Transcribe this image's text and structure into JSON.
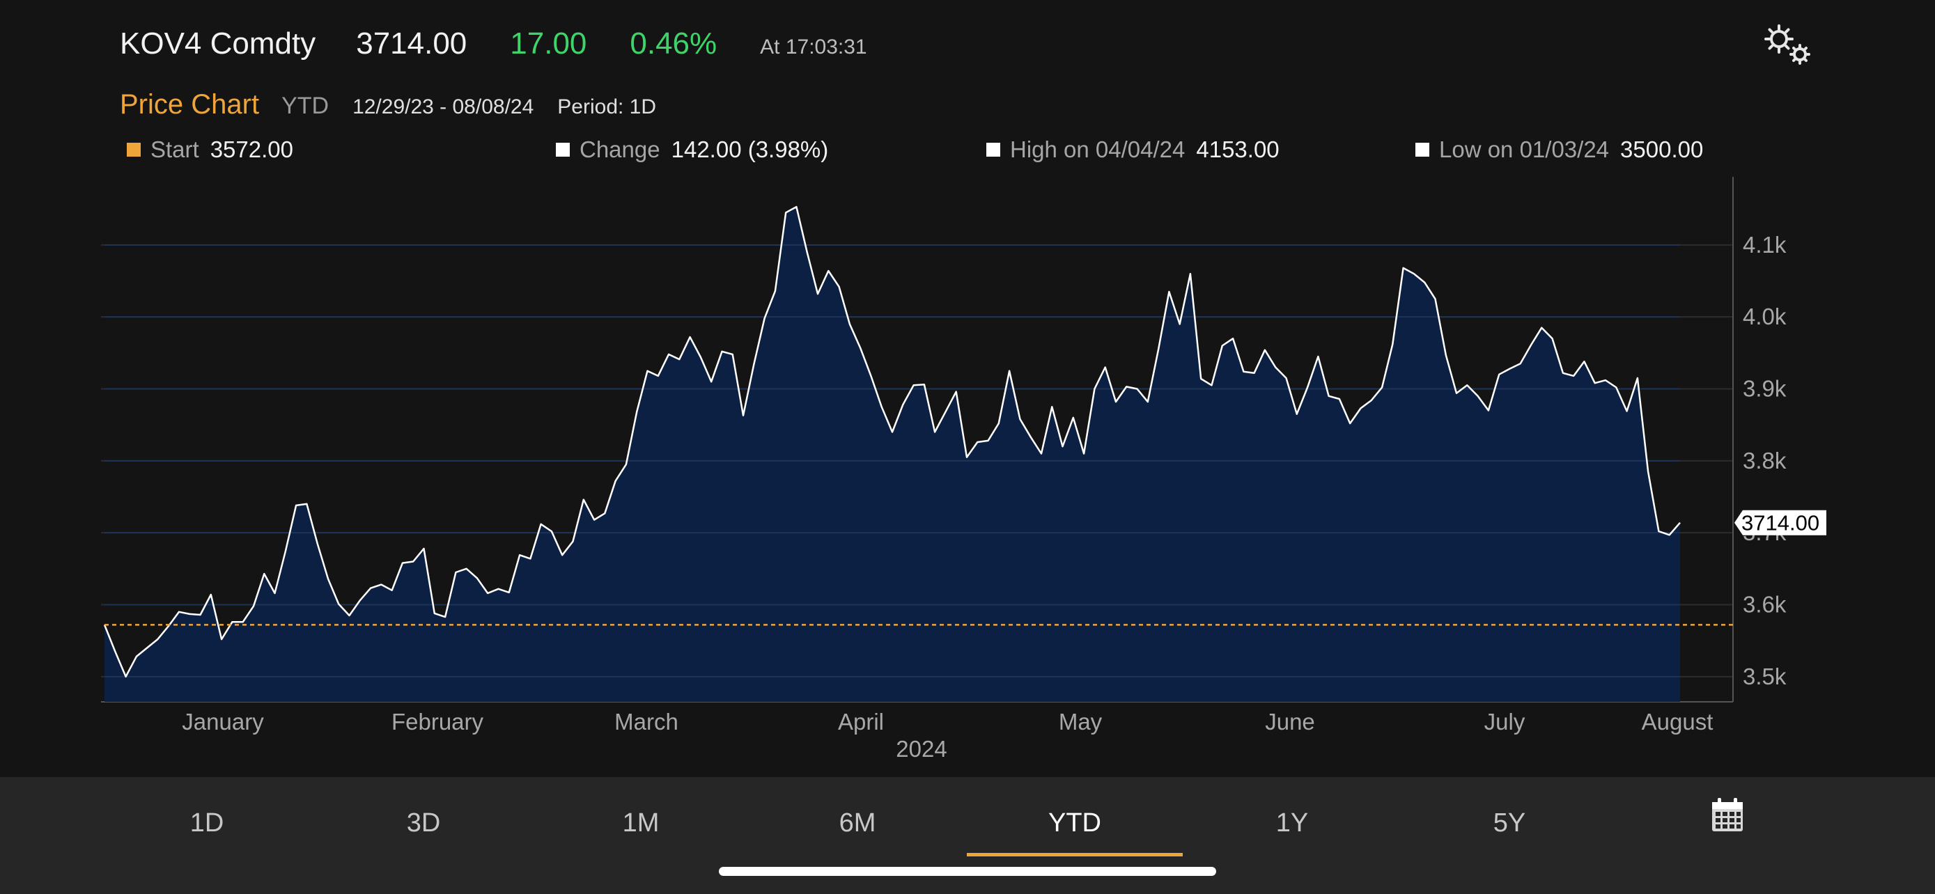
{
  "header": {
    "ticker": "KOV4 Comdty",
    "last_price": "3714.00",
    "net_change": "17.00",
    "pct_change": "0.46%",
    "as_of": "At 17:03:31",
    "settings_icon": "gears-icon"
  },
  "subheader": {
    "title": "Price Chart",
    "range": "YTD",
    "dates": "12/29/23 - 08/08/24",
    "period": "Period: 1D"
  },
  "stats": [
    {
      "label": "Start",
      "value": "3572.00",
      "color": "#f0a53a"
    },
    {
      "label": "Change",
      "value": "142.00 (3.98%)",
      "color": "#ffffff"
    },
    {
      "label": "High on 04/04/24",
      "value": "4153.00",
      "color": "#ffffff"
    },
    {
      "label": "Low on 01/03/24",
      "value": "3500.00",
      "color": "#ffffff"
    }
  ],
  "chart_data": {
    "type": "area",
    "title": "",
    "xlabel": "2024",
    "ylabel": "",
    "ylim": [
      3465,
      4185
    ],
    "y_ticks": [
      3500,
      3600,
      3700,
      3800,
      3900,
      4000,
      4100
    ],
    "y_tick_labels": [
      "3.5k",
      "3.6k",
      "3.7k",
      "3.8k",
      "3.9k",
      "4.0k",
      "4.1k"
    ],
    "x_tick_labels": [
      "January",
      "February",
      "March",
      "April",
      "May",
      "June",
      "July",
      "August"
    ],
    "x_year_label": "2024",
    "reference_line": 3572,
    "last_value_label": "3714.00",
    "grid": true,
    "colors": {
      "line": "#ffffff",
      "fill": "#0b2042",
      "reference": "#f0a53a"
    },
    "series": [
      {
        "values": [
          3572,
          3535,
          3500,
          3528,
          3540,
          3552,
          3570,
          3590,
          3587,
          3586,
          3614,
          3552,
          3576,
          3576,
          3598,
          3643,
          3616,
          3674,
          3738,
          3740,
          3685,
          3636,
          3601,
          3585,
          3606,
          3623,
          3628,
          3620,
          3658,
          3660,
          3678,
          3588,
          3583,
          3645,
          3650,
          3637,
          3616,
          3622,
          3617,
          3669,
          3664,
          3712,
          3702,
          3669,
          3688,
          3746,
          3718,
          3727,
          3772,
          3795,
          3868,
          3925,
          3918,
          3948,
          3941,
          3972,
          3944,
          3910,
          3952,
          3948,
          3863,
          3934,
          3998,
          4036,
          4145,
          4153,
          4090,
          4032,
          4064,
          4042,
          3990,
          3957,
          3918,
          3875,
          3840,
          3878,
          3905,
          3906,
          3840,
          3868,
          3896,
          3805,
          3826,
          3828,
          3852,
          3925,
          3858,
          3833,
          3810,
          3875,
          3820,
          3860,
          3810,
          3900,
          3930,
          3882,
          3903,
          3900,
          3882,
          3955,
          4035,
          3990,
          4060,
          3914,
          3905,
          3960,
          3970,
          3924,
          3922,
          3954,
          3930,
          3915,
          3865,
          3902,
          3945,
          3890,
          3886,
          3852,
          3873,
          3884,
          3902,
          3962,
          4068,
          4060,
          4048,
          4025,
          3947,
          3894,
          3905,
          3890,
          3870,
          3920,
          3928,
          3935,
          3961,
          3985,
          3970,
          3922,
          3918,
          3938,
          3908,
          3912,
          3902,
          3869,
          3915,
          3785,
          3702,
          3697,
          3714
        ]
      }
    ]
  },
  "timeframes": [
    {
      "label": "1D",
      "active": false
    },
    {
      "label": "3D",
      "active": false
    },
    {
      "label": "1M",
      "active": false
    },
    {
      "label": "6M",
      "active": false
    },
    {
      "label": "YTD",
      "active": true
    },
    {
      "label": "1Y",
      "active": false
    },
    {
      "label": "5Y",
      "active": false
    }
  ],
  "calendar_icon": "calendar-icon"
}
